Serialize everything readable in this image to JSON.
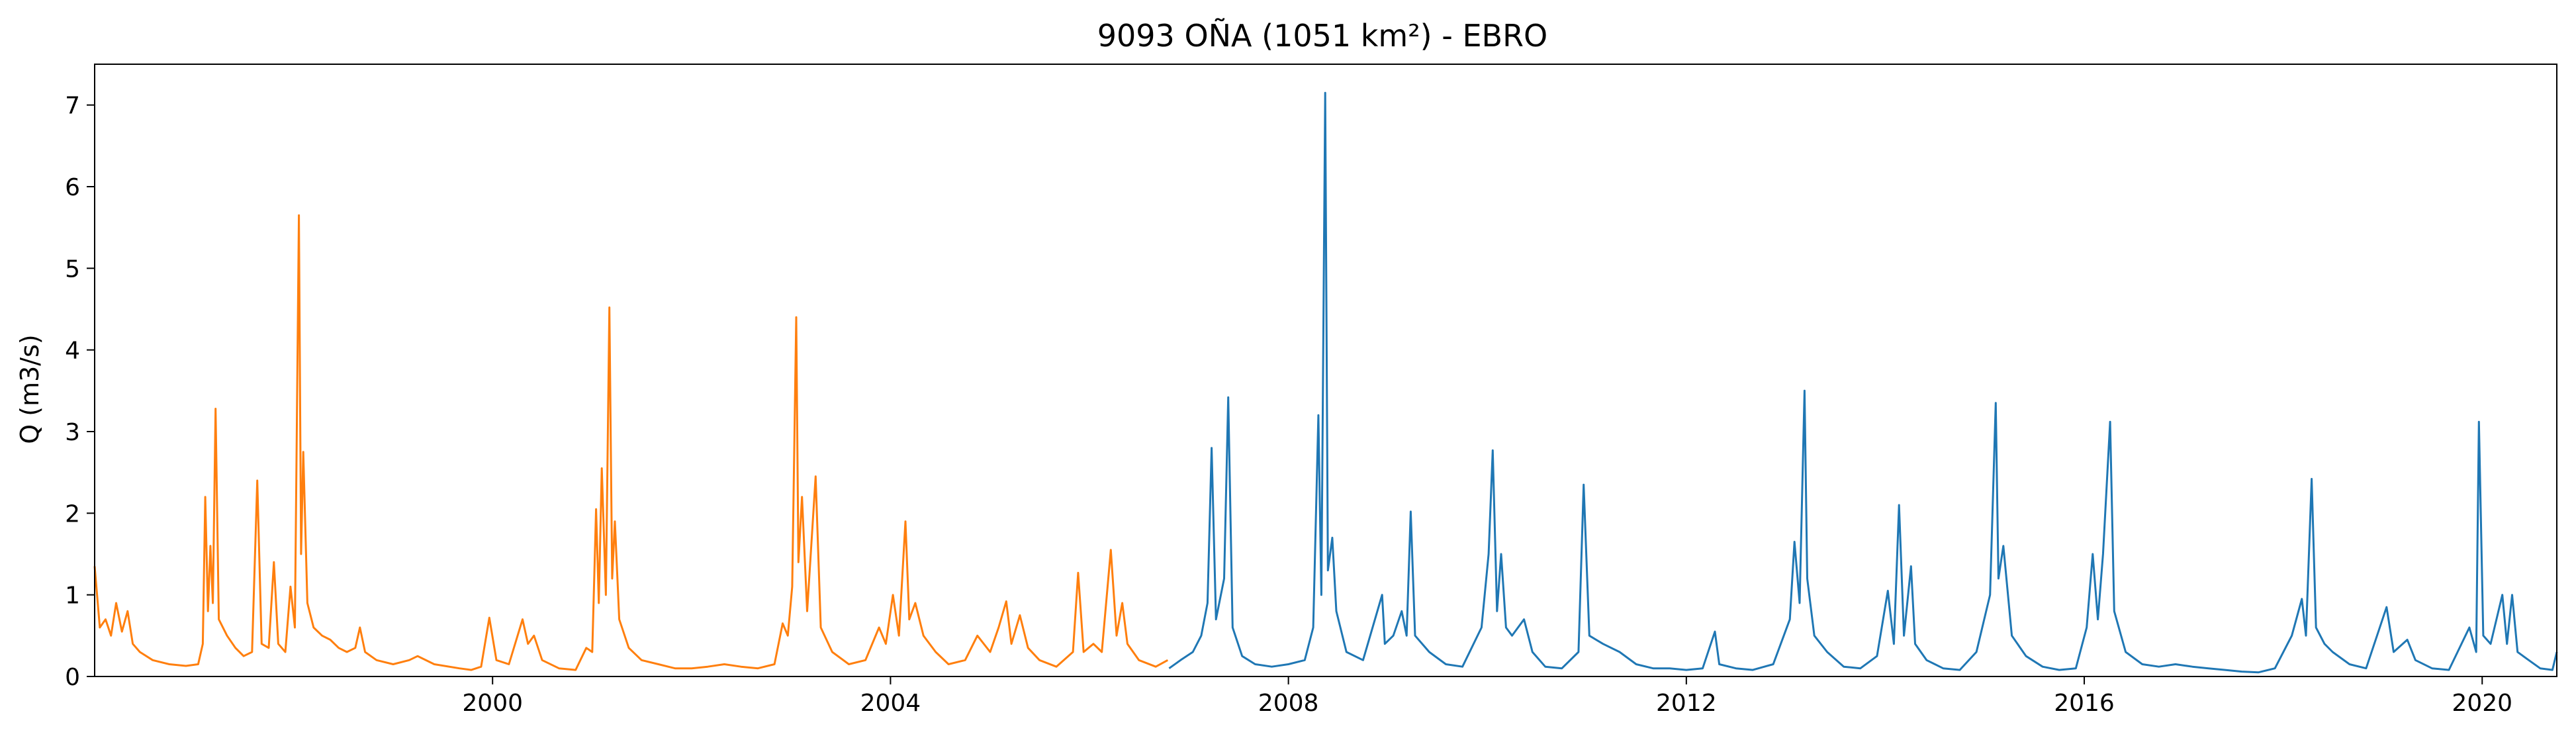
{
  "chart_data": {
    "type": "line",
    "title": "9093 OÑA (1051 km²) - EBRO",
    "xlabel": "",
    "ylabel": "Q (m3/s)",
    "xlim": [
      "1996-01-01",
      "2020-10-01"
    ],
    "ylim": [
      0,
      7.5
    ],
    "x_ticks": [
      "2000",
      "2004",
      "2008",
      "2012",
      "2016",
      "2020"
    ],
    "y_ticks": [
      "0",
      "1",
      "2",
      "3",
      "4",
      "5",
      "6",
      "7"
    ],
    "grid": false,
    "colors": {
      "series_1": "#ff7f0e",
      "series_2": "#1f77b4",
      "axes": "#000000"
    },
    "series": [
      {
        "color": "#ff7f0e",
        "points": [
          [
            "1996-01-01",
            1.35
          ],
          [
            "1996-01-20",
            0.6
          ],
          [
            "1996-02-10",
            0.7
          ],
          [
            "1996-03-01",
            0.5
          ],
          [
            "1996-03-20",
            0.9
          ],
          [
            "1996-04-10",
            0.55
          ],
          [
            "1996-05-01",
            0.8
          ],
          [
            "1996-05-20",
            0.4
          ],
          [
            "1996-06-15",
            0.3
          ],
          [
            "1996-08-01",
            0.2
          ],
          [
            "1996-10-01",
            0.15
          ],
          [
            "1996-12-01",
            0.13
          ],
          [
            "1997-01-15",
            0.15
          ],
          [
            "1997-02-01",
            0.4
          ],
          [
            "1997-02-10",
            2.2
          ],
          [
            "1997-02-20",
            0.8
          ],
          [
            "1997-03-01",
            1.6
          ],
          [
            "1997-03-10",
            0.9
          ],
          [
            "1997-03-20",
            3.28
          ],
          [
            "1997-04-01",
            0.7
          ],
          [
            "1997-05-01",
            0.5
          ],
          [
            "1997-06-01",
            0.35
          ],
          [
            "1997-07-01",
            0.25
          ],
          [
            "1997-08-01",
            0.3
          ],
          [
            "1997-08-20",
            2.4
          ],
          [
            "1997-09-05",
            0.4
          ],
          [
            "1997-10-01",
            0.35
          ],
          [
            "1997-10-20",
            1.4
          ],
          [
            "1997-11-05",
            0.4
          ],
          [
            "1997-12-01",
            0.3
          ],
          [
            "1997-12-20",
            1.1
          ],
          [
            "1998-01-05",
            0.6
          ],
          [
            "1998-01-20",
            5.65
          ],
          [
            "1998-01-28",
            1.5
          ],
          [
            "1998-02-05",
            2.75
          ],
          [
            "1998-02-20",
            0.9
          ],
          [
            "1998-03-15",
            0.6
          ],
          [
            "1998-04-15",
            0.5
          ],
          [
            "1998-05-15",
            0.45
          ],
          [
            "1998-06-15",
            0.35
          ],
          [
            "1998-07-15",
            0.3
          ],
          [
            "1998-08-15",
            0.35
          ],
          [
            "1998-09-01",
            0.6
          ],
          [
            "1998-09-20",
            0.3
          ],
          [
            "1998-11-01",
            0.2
          ],
          [
            "1999-01-01",
            0.15
          ],
          [
            "1999-03-01",
            0.2
          ],
          [
            "1999-04-01",
            0.25
          ],
          [
            "1999-06-01",
            0.15
          ],
          [
            "1999-09-01",
            0.1
          ],
          [
            "1999-10-15",
            0.08
          ],
          [
            "1999-11-20",
            0.12
          ],
          [
            "1999-12-20",
            0.72
          ],
          [
            "2000-01-15",
            0.2
          ],
          [
            "2000-03-01",
            0.15
          ],
          [
            "2000-04-20",
            0.7
          ],
          [
            "2000-05-10",
            0.4
          ],
          [
            "2000-06-01",
            0.5
          ],
          [
            "2000-07-01",
            0.2
          ],
          [
            "2000-09-01",
            0.1
          ],
          [
            "2000-11-01",
            0.08
          ],
          [
            "2000-12-10",
            0.35
          ],
          [
            "2001-01-01",
            0.3
          ],
          [
            "2001-01-15",
            2.05
          ],
          [
            "2001-01-25",
            0.9
          ],
          [
            "2001-02-05",
            2.55
          ],
          [
            "2001-02-20",
            1.0
          ],
          [
            "2001-03-05",
            4.52
          ],
          [
            "2001-03-15",
            1.2
          ],
          [
            "2001-03-25",
            1.9
          ],
          [
            "2001-04-10",
            0.7
          ],
          [
            "2001-05-15",
            0.35
          ],
          [
            "2001-07-01",
            0.2
          ],
          [
            "2001-09-01",
            0.15
          ],
          [
            "2001-11-01",
            0.1
          ],
          [
            "2002-01-01",
            0.1
          ],
          [
            "2002-03-01",
            0.12
          ],
          [
            "2002-05-01",
            0.15
          ],
          [
            "2002-07-01",
            0.12
          ],
          [
            "2002-09-01",
            0.1
          ],
          [
            "2002-11-01",
            0.15
          ],
          [
            "2002-12-01",
            0.65
          ],
          [
            "2002-12-20",
            0.5
          ],
          [
            "2003-01-05",
            1.1
          ],
          [
            "2003-01-20",
            4.4
          ],
          [
            "2003-01-28",
            1.4
          ],
          [
            "2003-02-10",
            2.2
          ],
          [
            "2003-03-01",
            0.8
          ],
          [
            "2003-04-01",
            2.45
          ],
          [
            "2003-04-20",
            0.6
          ],
          [
            "2003-06-01",
            0.3
          ],
          [
            "2003-08-01",
            0.15
          ],
          [
            "2003-10-01",
            0.2
          ],
          [
            "2003-11-20",
            0.6
          ],
          [
            "2003-12-15",
            0.4
          ],
          [
            "2004-01-10",
            1.0
          ],
          [
            "2004-02-01",
            0.5
          ],
          [
            "2004-02-25",
            1.9
          ],
          [
            "2004-03-10",
            0.7
          ],
          [
            "2004-04-01",
            0.9
          ],
          [
            "2004-05-01",
            0.5
          ],
          [
            "2004-06-15",
            0.3
          ],
          [
            "2004-08-01",
            0.15
          ],
          [
            "2004-10-01",
            0.2
          ],
          [
            "2004-11-15",
            0.5
          ],
          [
            "2005-01-01",
            0.3
          ],
          [
            "2005-02-01",
            0.6
          ],
          [
            "2005-03-01",
            0.92
          ],
          [
            "2005-03-20",
            0.4
          ],
          [
            "2005-04-20",
            0.75
          ],
          [
            "2005-05-20",
            0.35
          ],
          [
            "2005-07-01",
            0.2
          ],
          [
            "2005-09-01",
            0.12
          ],
          [
            "2005-11-01",
            0.3
          ],
          [
            "2005-11-20",
            1.27
          ],
          [
            "2005-12-10",
            0.3
          ],
          [
            "2006-01-15",
            0.4
          ],
          [
            "2006-02-15",
            0.3
          ],
          [
            "2006-03-20",
            1.55
          ],
          [
            "2006-04-10",
            0.5
          ],
          [
            "2006-05-01",
            0.9
          ],
          [
            "2006-05-20",
            0.4
          ],
          [
            "2006-07-01",
            0.2
          ],
          [
            "2006-09-01",
            0.12
          ],
          [
            "2006-10-15",
            0.2
          ]
        ]
      },
      {
        "color": "#1f77b4",
        "points": [
          [
            "2006-10-20",
            0.1
          ],
          [
            "2006-12-01",
            0.2
          ],
          [
            "2007-01-15",
            0.3
          ],
          [
            "2007-02-15",
            0.5
          ],
          [
            "2007-03-10",
            0.9
          ],
          [
            "2007-03-25",
            2.8
          ],
          [
            "2007-04-10",
            0.7
          ],
          [
            "2007-05-10",
            1.2
          ],
          [
            "2007-05-25",
            3.42
          ],
          [
            "2007-06-10",
            0.6
          ],
          [
            "2007-07-15",
            0.25
          ],
          [
            "2007-09-01",
            0.15
          ],
          [
            "2007-11-01",
            0.12
          ],
          [
            "2008-01-01",
            0.15
          ],
          [
            "2008-03-01",
            0.2
          ],
          [
            "2008-04-01",
            0.6
          ],
          [
            "2008-04-20",
            3.2
          ],
          [
            "2008-05-01",
            1.0
          ],
          [
            "2008-05-15",
            7.15
          ],
          [
            "2008-05-25",
            1.3
          ],
          [
            "2008-06-10",
            1.7
          ],
          [
            "2008-06-25",
            0.8
          ],
          [
            "2008-08-01",
            0.3
          ],
          [
            "2008-10-01",
            0.2
          ],
          [
            "2008-12-10",
            1.0
          ],
          [
            "2008-12-20",
            0.4
          ],
          [
            "2009-01-20",
            0.5
          ],
          [
            "2009-02-20",
            0.8
          ],
          [
            "2009-03-10",
            0.5
          ],
          [
            "2009-03-25",
            2.02
          ],
          [
            "2009-04-10",
            0.5
          ],
          [
            "2009-06-01",
            0.3
          ],
          [
            "2009-08-01",
            0.15
          ],
          [
            "2009-10-01",
            0.12
          ],
          [
            "2009-12-10",
            0.6
          ],
          [
            "2010-01-05",
            1.5
          ],
          [
            "2010-01-20",
            2.77
          ],
          [
            "2010-02-05",
            0.8
          ],
          [
            "2010-02-20",
            1.5
          ],
          [
            "2010-03-10",
            0.6
          ],
          [
            "2010-04-01",
            0.5
          ],
          [
            "2010-05-15",
            0.7
          ],
          [
            "2010-06-15",
            0.3
          ],
          [
            "2010-08-01",
            0.12
          ],
          [
            "2010-10-01",
            0.1
          ],
          [
            "2010-12-01",
            0.3
          ],
          [
            "2010-12-20",
            2.35
          ],
          [
            "2011-01-10",
            0.5
          ],
          [
            "2011-03-01",
            0.4
          ],
          [
            "2011-05-01",
            0.3
          ],
          [
            "2011-07-01",
            0.15
          ],
          [
            "2011-09-01",
            0.1
          ],
          [
            "2011-11-01",
            0.1
          ],
          [
            "2012-01-01",
            0.08
          ],
          [
            "2012-03-01",
            0.1
          ],
          [
            "2012-04-15",
            0.55
          ],
          [
            "2012-05-01",
            0.15
          ],
          [
            "2012-07-01",
            0.1
          ],
          [
            "2012-09-01",
            0.08
          ],
          [
            "2012-11-15",
            0.15
          ],
          [
            "2013-01-15",
            0.7
          ],
          [
            "2013-02-01",
            1.65
          ],
          [
            "2013-02-20",
            0.9
          ],
          [
            "2013-03-10",
            3.5
          ],
          [
            "2013-03-20",
            1.2
          ],
          [
            "2013-04-15",
            0.5
          ],
          [
            "2013-06-01",
            0.3
          ],
          [
            "2013-08-01",
            0.12
          ],
          [
            "2013-10-01",
            0.1
          ],
          [
            "2013-12-01",
            0.25
          ],
          [
            "2014-01-10",
            1.05
          ],
          [
            "2014-02-01",
            0.4
          ],
          [
            "2014-02-20",
            2.1
          ],
          [
            "2014-03-10",
            0.5
          ],
          [
            "2014-04-05",
            1.35
          ],
          [
            "2014-04-20",
            0.4
          ],
          [
            "2014-06-01",
            0.2
          ],
          [
            "2014-08-01",
            0.1
          ],
          [
            "2014-10-01",
            0.08
          ],
          [
            "2014-12-01",
            0.3
          ],
          [
            "2015-01-20",
            1.0
          ],
          [
            "2015-02-10",
            3.35
          ],
          [
            "2015-02-20",
            1.2
          ],
          [
            "2015-03-10",
            1.6
          ],
          [
            "2015-04-10",
            0.5
          ],
          [
            "2015-06-01",
            0.25
          ],
          [
            "2015-08-01",
            0.12
          ],
          [
            "2015-10-01",
            0.08
          ],
          [
            "2015-12-01",
            0.1
          ],
          [
            "2016-01-10",
            0.6
          ],
          [
            "2016-02-01",
            1.5
          ],
          [
            "2016-02-20",
            0.7
          ],
          [
            "2016-03-10",
            1.5
          ],
          [
            "2016-04-05",
            3.12
          ],
          [
            "2016-04-20",
            0.8
          ],
          [
            "2016-06-01",
            0.3
          ],
          [
            "2016-08-01",
            0.15
          ],
          [
            "2016-10-01",
            0.12
          ],
          [
            "2016-12-01",
            0.15
          ],
          [
            "2017-02-01",
            0.12
          ],
          [
            "2017-04-01",
            0.1
          ],
          [
            "2017-06-01",
            0.08
          ],
          [
            "2017-08-01",
            0.06
          ],
          [
            "2017-10-01",
            0.05
          ],
          [
            "2017-12-01",
            0.1
          ],
          [
            "2018-02-01",
            0.5
          ],
          [
            "2018-03-10",
            0.95
          ],
          [
            "2018-03-25",
            0.5
          ],
          [
            "2018-04-15",
            2.42
          ],
          [
            "2018-05-01",
            0.6
          ],
          [
            "2018-06-01",
            0.4
          ],
          [
            "2018-07-01",
            0.3
          ],
          [
            "2018-09-01",
            0.15
          ],
          [
            "2018-11-01",
            0.1
          ],
          [
            "2019-01-15",
            0.85
          ],
          [
            "2019-02-10",
            0.3
          ],
          [
            "2019-04-01",
            0.45
          ],
          [
            "2019-05-01",
            0.2
          ],
          [
            "2019-07-01",
            0.1
          ],
          [
            "2019-09-01",
            0.08
          ],
          [
            "2019-11-15",
            0.6
          ],
          [
            "2019-12-10",
            0.3
          ],
          [
            "2019-12-20",
            3.12
          ],
          [
            "2020-01-05",
            0.5
          ],
          [
            "2020-02-01",
            0.4
          ],
          [
            "2020-03-15",
            1.0
          ],
          [
            "2020-04-01",
            0.4
          ],
          [
            "2020-04-20",
            1.0
          ],
          [
            "2020-05-10",
            0.3
          ],
          [
            "2020-06-20",
            0.2
          ],
          [
            "2020-08-01",
            0.1
          ],
          [
            "2020-09-15",
            0.08
          ],
          [
            "2020-10-01",
            0.3
          ]
        ]
      }
    ]
  }
}
